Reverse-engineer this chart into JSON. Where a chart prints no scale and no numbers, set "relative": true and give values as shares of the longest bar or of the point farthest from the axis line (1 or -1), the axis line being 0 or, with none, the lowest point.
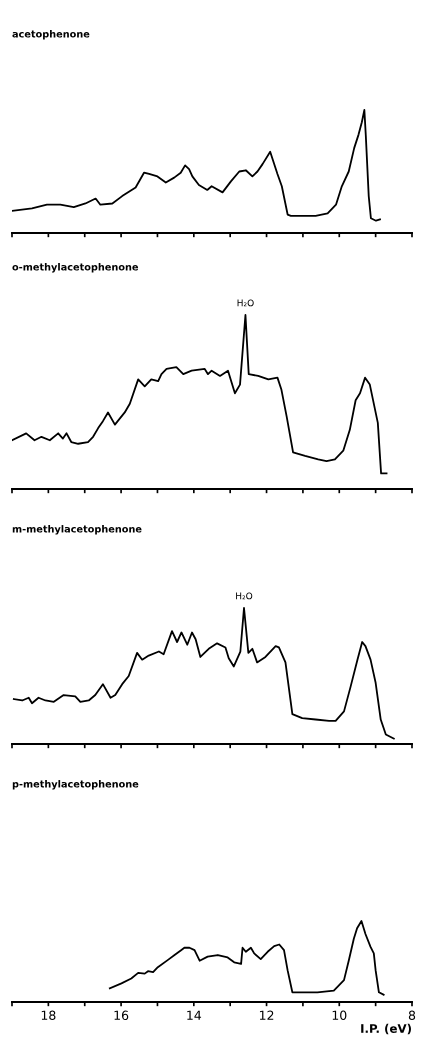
{
  "chart_data": [
    {
      "type": "line",
      "title": "acetophenone",
      "relative": true,
      "xlim": [
        19,
        8
      ],
      "tick_labels": false,
      "xticks": [
        {
          "value": 19,
          "label": null
        },
        {
          "value": 18,
          "label": null
        },
        {
          "value": 17,
          "label": null
        },
        {
          "value": 16,
          "label": null
        },
        {
          "value": 15,
          "label": null
        },
        {
          "value": 14,
          "label": null
        },
        {
          "value": 13,
          "label": null
        },
        {
          "value": 12,
          "label": null
        },
        {
          "value": 11,
          "label": null
        },
        {
          "value": 10,
          "label": null
        },
        {
          "value": 9,
          "label": null
        },
        {
          "value": 8,
          "label": null
        }
      ],
      "series": [
        {
          "color": "#000000",
          "x": [
            19.0,
            18.45,
            18.04,
            17.67,
            17.3,
            16.98,
            16.7,
            16.57,
            16.24,
            15.97,
            15.6,
            15.37,
            15.23,
            15.0,
            14.77,
            14.54,
            14.36,
            14.24,
            14.13,
            14.04,
            13.86,
            13.63,
            13.51,
            13.21,
            12.98,
            12.75,
            12.57,
            12.39,
            12.25,
            12.11,
            11.9,
            11.7,
            11.58,
            11.42,
            11.33,
            11.01,
            10.65,
            10.32,
            10.09,
            9.93,
            9.74,
            9.59,
            9.47,
            9.38,
            9.31,
            9.27,
            9.19,
            9.13,
            8.99,
            8.88
          ],
          "values": [
            0.18,
            0.2,
            0.23,
            0.23,
            0.21,
            0.24,
            0.28,
            0.23,
            0.24,
            0.3,
            0.37,
            0.49,
            0.48,
            0.46,
            0.41,
            0.45,
            0.49,
            0.55,
            0.52,
            0.46,
            0.39,
            0.35,
            0.38,
            0.33,
            0.42,
            0.5,
            0.51,
            0.46,
            0.5,
            0.56,
            0.66,
            0.48,
            0.38,
            0.15,
            0.14,
            0.14,
            0.14,
            0.16,
            0.23,
            0.38,
            0.5,
            0.69,
            0.8,
            0.9,
            1.0,
            0.79,
            0.3,
            0.12,
            0.1,
            0.11
          ]
        }
      ]
    },
    {
      "type": "line",
      "title": "o-methylacetophenone",
      "relative": true,
      "xlim": [
        19,
        8
      ],
      "tick_labels": false,
      "xticks": [
        {
          "value": 19,
          "label": null
        },
        {
          "value": 18,
          "label": null
        },
        {
          "value": 17,
          "label": null
        },
        {
          "value": 16,
          "label": null
        },
        {
          "value": 15,
          "label": null
        },
        {
          "value": 14,
          "label": null
        },
        {
          "value": 13,
          "label": null
        },
        {
          "value": 12,
          "label": null
        },
        {
          "value": 11,
          "label": null
        },
        {
          "value": 10,
          "label": null
        },
        {
          "value": 9,
          "label": null
        },
        {
          "value": 8,
          "label": null
        }
      ],
      "annotations": [
        {
          "text": "H₂O",
          "x": 12.58,
          "y": 1.0
        }
      ],
      "series": [
        {
          "color": "#000000",
          "x": [
            19.0,
            18.61,
            18.38,
            18.19,
            17.96,
            17.73,
            17.6,
            17.5,
            17.37,
            17.18,
            16.91,
            16.77,
            16.63,
            16.5,
            16.36,
            16.17,
            15.9,
            15.76,
            15.53,
            15.35,
            15.17,
            14.98,
            14.89,
            14.75,
            14.48,
            14.29,
            14.06,
            13.7,
            13.61,
            13.51,
            13.28,
            13.06,
            12.87,
            12.73,
            12.58,
            12.49,
            12.23,
            11.95,
            11.7,
            11.59,
            11.45,
            11.27,
            10.94,
            10.58,
            10.35,
            10.12,
            9.89,
            9.71,
            9.55,
            9.43,
            9.29,
            9.16,
            8.94,
            8.85,
            8.7
          ],
          "values": [
            0.28,
            0.32,
            0.28,
            0.3,
            0.28,
            0.32,
            0.29,
            0.32,
            0.27,
            0.26,
            0.27,
            0.3,
            0.35,
            0.39,
            0.44,
            0.37,
            0.44,
            0.49,
            0.63,
            0.59,
            0.63,
            0.62,
            0.66,
            0.69,
            0.7,
            0.66,
            0.68,
            0.69,
            0.66,
            0.68,
            0.65,
            0.68,
            0.55,
            0.6,
            1.0,
            0.66,
            0.65,
            0.63,
            0.64,
            0.57,
            0.42,
            0.21,
            0.19,
            0.17,
            0.16,
            0.17,
            0.22,
            0.34,
            0.51,
            0.55,
            0.64,
            0.6,
            0.38,
            0.09,
            0.09
          ]
        }
      ]
    },
    {
      "type": "line",
      "title": "m-methylacetophenone",
      "relative": true,
      "xlim": [
        19,
        8
      ],
      "tick_labels": false,
      "xticks": [
        {
          "value": 19,
          "label": null
        },
        {
          "value": 18,
          "label": null
        },
        {
          "value": 17,
          "label": null
        },
        {
          "value": 16,
          "label": null
        },
        {
          "value": 15,
          "label": null
        },
        {
          "value": 14,
          "label": null
        },
        {
          "value": 13,
          "label": null
        },
        {
          "value": 12,
          "label": null
        },
        {
          "value": 11,
          "label": null
        },
        {
          "value": 10,
          "label": null
        },
        {
          "value": 9,
          "label": null
        },
        {
          "value": 8,
          "label": null
        }
      ],
      "annotations": [
        {
          "text": "H₂O",
          "x": 12.62,
          "y": 1.0
        }
      ],
      "series": [
        {
          "color": "#000000",
          "x": [
            18.95,
            18.72,
            18.54,
            18.45,
            18.27,
            18.08,
            17.85,
            17.58,
            17.26,
            17.12,
            16.89,
            16.71,
            16.5,
            16.29,
            16.16,
            15.97,
            15.79,
            15.56,
            15.42,
            15.24,
            14.96,
            14.83,
            14.6,
            14.46,
            14.34,
            14.18,
            14.05,
            13.95,
            13.82,
            13.59,
            13.36,
            13.13,
            13.04,
            12.9,
            12.72,
            12.62,
            12.5,
            12.39,
            12.26,
            12.03,
            11.75,
            11.66,
            11.48,
            11.29,
            11.02,
            10.65,
            10.28,
            10.1,
            9.87,
            9.69,
            9.5,
            9.37,
            9.28,
            9.14,
            9.0,
            8.86,
            8.72,
            8.5
          ],
          "values": [
            0.33,
            0.32,
            0.34,
            0.3,
            0.34,
            0.32,
            0.31,
            0.36,
            0.35,
            0.31,
            0.32,
            0.36,
            0.44,
            0.34,
            0.36,
            0.44,
            0.5,
            0.67,
            0.62,
            0.65,
            0.68,
            0.66,
            0.83,
            0.75,
            0.82,
            0.73,
            0.82,
            0.77,
            0.64,
            0.7,
            0.74,
            0.71,
            0.63,
            0.57,
            0.68,
            1.0,
            0.67,
            0.7,
            0.6,
            0.64,
            0.72,
            0.71,
            0.6,
            0.22,
            0.19,
            0.18,
            0.17,
            0.17,
            0.24,
            0.42,
            0.62,
            0.75,
            0.72,
            0.62,
            0.45,
            0.18,
            0.07,
            0.04
          ]
        }
      ]
    },
    {
      "type": "line",
      "title": "p-methylacetophenone",
      "xlabel": "I.P. (eV)",
      "relative": true,
      "xlim": [
        19,
        8
      ],
      "tick_labels": "x",
      "xticks": [
        {
          "value": 19,
          "label": null
        },
        18,
        {
          "value": 17,
          "label": null
        },
        16,
        {
          "value": 15,
          "label": null
        },
        14,
        {
          "value": 13,
          "label": null
        },
        12,
        {
          "value": 11,
          "label": null
        },
        10,
        {
          "value": 9,
          "label": null
        },
        8
      ],
      "series": [
        {
          "color": "#000000",
          "x": [
            16.31,
            15.99,
            15.72,
            15.53,
            15.35,
            15.26,
            15.12,
            14.99,
            14.71,
            14.53,
            14.35,
            14.26,
            14.12,
            13.98,
            13.84,
            13.62,
            13.34,
            13.07,
            12.89,
            12.7,
            12.66,
            12.57,
            12.43,
            12.34,
            12.16,
            11.97,
            11.79,
            11.65,
            11.52,
            11.42,
            11.29,
            11.06,
            10.6,
            10.15,
            9.87,
            9.74,
            9.6,
            9.51,
            9.39,
            9.28,
            9.14,
            9.05,
            9.0,
            8.91,
            8.78
          ],
          "values": [
            0.17,
            0.23,
            0.29,
            0.36,
            0.35,
            0.38,
            0.37,
            0.43,
            0.52,
            0.58,
            0.64,
            0.67,
            0.67,
            0.64,
            0.51,
            0.56,
            0.58,
            0.55,
            0.49,
            0.47,
            0.67,
            0.62,
            0.67,
            0.6,
            0.53,
            0.62,
            0.69,
            0.71,
            0.64,
            0.39,
            0.12,
            0.12,
            0.12,
            0.14,
            0.27,
            0.51,
            0.78,
            0.91,
            1.0,
            0.84,
            0.68,
            0.6,
            0.39,
            0.12,
            0.09
          ]
        }
      ]
    }
  ]
}
